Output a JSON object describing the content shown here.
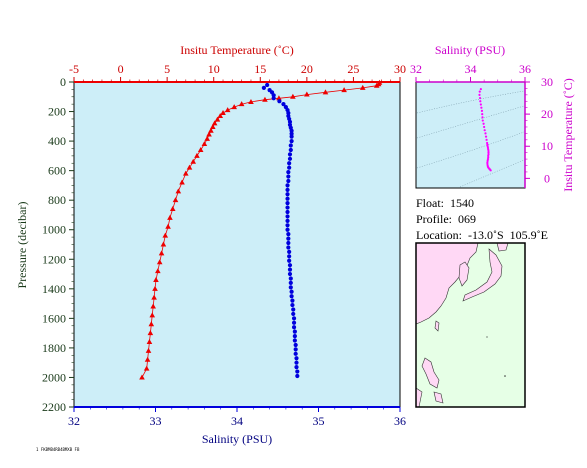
{
  "chart_data": [
    {
      "type": "line",
      "subtype": "ocean-profile",
      "x_top_label": "Insitu Temperature (˚C)",
      "x_bottom_label": "Salinity (PSU)",
      "ylabel": "Pressure (decibar)",
      "temp_ticks": [
        "-5",
        "0",
        "5",
        "10",
        "15",
        "20",
        "25",
        "30"
      ],
      "sal_ticks": [
        "32",
        "33",
        "34",
        "35",
        "36"
      ],
      "pressure_ticks": [
        "0",
        "200",
        "400",
        "600",
        "800",
        "1000",
        "1200",
        "1400",
        "1600",
        "1800",
        "2000",
        "2200"
      ],
      "temp_range": [
        -5,
        30
      ],
      "sal_range": [
        32,
        36
      ],
      "pressure_range": [
        0,
        2200
      ],
      "series": [
        {
          "name": "Insitu Temperature",
          "color": "#ee0000",
          "marker": "triangle",
          "points": [
            [
              27.8,
              5
            ],
            [
              27.7,
              15
            ],
            [
              27.5,
              25
            ],
            [
              26.0,
              40
            ],
            [
              24.0,
              55
            ],
            [
              22.0,
              70
            ],
            [
              20.0,
              85
            ],
            [
              18.5,
              100
            ],
            [
              17.0,
              110
            ],
            [
              15.5,
              120
            ],
            [
              14.0,
              135
            ],
            [
              13.0,
              150
            ],
            [
              12.2,
              170
            ],
            [
              11.5,
              190
            ],
            [
              11.0,
              210
            ],
            [
              10.7,
              230
            ],
            [
              10.4,
              255
            ],
            [
              10.1,
              280
            ],
            [
              9.9,
              305
            ],
            [
              9.7,
              330
            ],
            [
              9.5,
              355
            ],
            [
              9.3,
              385
            ],
            [
              9.0,
              420
            ],
            [
              8.6,
              460
            ],
            [
              8.2,
              500
            ],
            [
              7.8,
              540
            ],
            [
              7.4,
              580
            ],
            [
              7.0,
              620
            ],
            [
              6.6,
              680
            ],
            [
              6.2,
              740
            ],
            [
              5.9,
              800
            ],
            [
              5.6,
              860
            ],
            [
              5.3,
              920
            ],
            [
              5.1,
              980
            ],
            [
              4.8,
              1040
            ],
            [
              4.6,
              1100
            ],
            [
              4.4,
              1160
            ],
            [
              4.2,
              1220
            ],
            [
              4.0,
              1280
            ],
            [
              3.8,
              1340
            ],
            [
              3.7,
              1400
            ],
            [
              3.6,
              1460
            ],
            [
              3.5,
              1520
            ],
            [
              3.4,
              1580
            ],
            [
              3.3,
              1640
            ],
            [
              3.2,
              1700
            ],
            [
              3.1,
              1760
            ],
            [
              3.0,
              1820
            ],
            [
              2.9,
              1880
            ],
            [
              2.8,
              1940
            ],
            [
              2.3,
              2000
            ]
          ]
        },
        {
          "name": "Salinity",
          "color": "#0000dd",
          "marker": "circle",
          "points": [
            [
              34.37,
              20
            ],
            [
              34.33,
              40
            ],
            [
              34.4,
              55
            ],
            [
              34.43,
              70
            ],
            [
              34.45,
              90
            ],
            [
              34.45,
              110
            ],
            [
              34.52,
              130
            ],
            [
              34.57,
              150
            ],
            [
              34.6,
              170
            ],
            [
              34.62,
              190
            ],
            [
              34.63,
              210
            ],
            [
              34.63,
              230
            ],
            [
              34.64,
              250
            ],
            [
              34.65,
              270
            ],
            [
              34.65,
              290
            ],
            [
              34.66,
              310
            ],
            [
              34.67,
              330
            ],
            [
              34.67,
              350
            ],
            [
              34.67,
              370
            ],
            [
              34.67,
              400
            ],
            [
              34.66,
              430
            ],
            [
              34.66,
              460
            ],
            [
              34.65,
              490
            ],
            [
              34.65,
              520
            ],
            [
              34.64,
              550
            ],
            [
              34.64,
              580
            ],
            [
              34.63,
              610
            ],
            [
              34.63,
              640
            ],
            [
              34.63,
              670
            ],
            [
              34.62,
              700
            ],
            [
              34.62,
              730
            ],
            [
              34.62,
              760
            ],
            [
              34.62,
              790
            ],
            [
              34.62,
              820
            ],
            [
              34.62,
              850
            ],
            [
              34.62,
              880
            ],
            [
              34.62,
              910
            ],
            [
              34.62,
              940
            ],
            [
              34.62,
              970
            ],
            [
              34.62,
              1000
            ],
            [
              34.63,
              1030
            ],
            [
              34.63,
              1060
            ],
            [
              34.63,
              1090
            ],
            [
              34.63,
              1120
            ],
            [
              34.64,
              1150
            ],
            [
              34.64,
              1180
            ],
            [
              34.64,
              1210
            ],
            [
              34.65,
              1240
            ],
            [
              34.65,
              1270
            ],
            [
              34.65,
              1300
            ],
            [
              34.66,
              1330
            ],
            [
              34.66,
              1360
            ],
            [
              34.66,
              1390
            ],
            [
              34.67,
              1420
            ],
            [
              34.67,
              1450
            ],
            [
              34.68,
              1480
            ],
            [
              34.68,
              1510
            ],
            [
              34.69,
              1540
            ],
            [
              34.69,
              1570
            ],
            [
              34.7,
              1600
            ],
            [
              34.7,
              1630
            ],
            [
              34.7,
              1660
            ],
            [
              34.71,
              1690
            ],
            [
              34.71,
              1720
            ],
            [
              34.71,
              1750
            ],
            [
              34.72,
              1780
            ],
            [
              34.72,
              1810
            ],
            [
              34.72,
              1840
            ],
            [
              34.73,
              1870
            ],
            [
              34.73,
              1900
            ],
            [
              34.73,
              1930
            ],
            [
              34.74,
              1960
            ],
            [
              34.74,
              1990
            ]
          ]
        }
      ]
    },
    {
      "type": "scatter",
      "subtype": "T-S diagram",
      "x_top_label": "Salinity (PSU)",
      "y_right_label": "Insitu Temperature (˚C)",
      "sal_ticks": [
        "32",
        "34",
        "36"
      ],
      "temp_ticks": [
        "0",
        "10",
        "20",
        "30"
      ],
      "sal_range": [
        32,
        36
      ],
      "temp_range": [
        -3,
        30
      ],
      "color": "#ff00ff",
      "points": [
        [
          34.38,
          27.8
        ],
        [
          34.34,
          27.0
        ],
        [
          34.33,
          26.0
        ],
        [
          34.35,
          25.0
        ],
        [
          34.36,
          24.0
        ],
        [
          34.38,
          23.0
        ],
        [
          34.4,
          22.0
        ],
        [
          34.42,
          21.0
        ],
        [
          34.43,
          20.0
        ],
        [
          34.44,
          19.0
        ],
        [
          34.45,
          18.0
        ],
        [
          34.48,
          17.0
        ],
        [
          34.5,
          16.0
        ],
        [
          34.52,
          15.0
        ],
        [
          34.55,
          14.0
        ],
        [
          34.57,
          13.0
        ],
        [
          34.59,
          12.0
        ],
        [
          34.61,
          11.0
        ],
        [
          34.62,
          10.5
        ],
        [
          34.63,
          10.0
        ],
        [
          34.64,
          9.5
        ],
        [
          34.65,
          9.0
        ],
        [
          34.66,
          8.5
        ],
        [
          34.66,
          8.0
        ],
        [
          34.66,
          7.5
        ],
        [
          34.65,
          7.0
        ],
        [
          34.65,
          6.5
        ],
        [
          34.64,
          6.0
        ],
        [
          34.63,
          5.5
        ],
        [
          34.62,
          5.0
        ],
        [
          34.62,
          4.5
        ],
        [
          34.63,
          4.0
        ],
        [
          34.64,
          3.6
        ],
        [
          34.66,
          3.3
        ],
        [
          34.69,
          3.0
        ],
        [
          34.71,
          2.8
        ],
        [
          34.74,
          2.5
        ]
      ]
    }
  ],
  "info": {
    "float": "Float:  1540",
    "profile": "Profile:  069",
    "location": "Location:  -13.0˚S  105.9˚E"
  },
  "footer_stamp": "1 FKBMB4RB4BMXB FB",
  "colors": {
    "plot_bg": "#cdeef8",
    "temp": "#ee0000",
    "salinity_main": "#0000dd",
    "ts_points": "#ff00ff",
    "ts_axis": "#cc00cc",
    "axis_text_dark": "#1a3a1a",
    "axis_text_blue": "#000080",
    "map_land": "#ffd8f5",
    "map_sea": "#e6ffe6"
  }
}
